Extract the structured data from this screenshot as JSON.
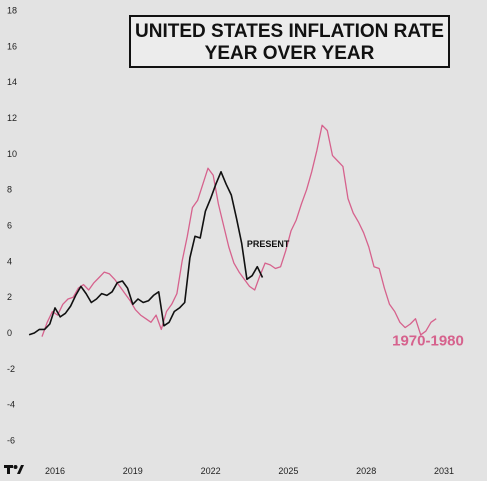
{
  "title": {
    "line1": "UNITED STATES INFLATION RATE",
    "line2": "YEAR OVER YEAR"
  },
  "logo": "TV",
  "chart_data": {
    "type": "line",
    "title": "UNITED STATES INFLATION RATE YEAR OVER YEAR",
    "xlabel": "",
    "ylabel": "",
    "xlim": [
      2014.8,
      2031.2
    ],
    "ylim": [
      -7,
      18
    ],
    "x_ticks": [
      2016,
      2019,
      2022,
      2025,
      2028,
      2031
    ],
    "y_ticks": [
      -6,
      -4,
      -2,
      0,
      2,
      4,
      6,
      8,
      10,
      12,
      14,
      16,
      18
    ],
    "grid": false,
    "legend": "none",
    "annotations": [
      {
        "text": "PRESENT",
        "x": 2023.4,
        "y": 4.8
      },
      {
        "text": "1970-1980",
        "x": 2029.0,
        "y": -0.7
      }
    ],
    "series": [
      {
        "color": "#d6628d",
        "x": [
          2015.5,
          2015.7,
          2015.9,
          2016.1,
          2016.3,
          2016.5,
          2016.7,
          2016.9,
          2017.1,
          2017.3,
          2017.5,
          2017.7,
          2017.9,
          2018.1,
          2018.3,
          2018.5,
          2018.7,
          2018.9,
          2019.1,
          2019.3,
          2019.5,
          2019.7,
          2019.9,
          2020.1,
          2020.3,
          2020.5,
          2020.7,
          2020.9,
          2021.1,
          2021.3,
          2021.5,
          2021.7,
          2021.9,
          2022.1,
          2022.3,
          2022.5,
          2022.7,
          2022.9,
          2023.1,
          2023.3,
          2023.5,
          2023.7,
          2023.9,
          2024.1,
          2024.3,
          2024.5,
          2024.7,
          2024.9,
          2025.1,
          2025.3,
          2025.5,
          2025.7,
          2025.9,
          2026.1,
          2026.3,
          2026.5,
          2026.7,
          2026.9,
          2027.1,
          2027.3,
          2027.5,
          2027.7,
          2027.9,
          2028.1,
          2028.3,
          2028.5,
          2028.7,
          2028.9,
          2029.1,
          2029.3,
          2029.5,
          2029.7,
          2029.9,
          2030.1,
          2030.3,
          2030.5,
          2030.7
        ],
        "values": [
          -0.2,
          0.6,
          1.2,
          1.0,
          1.6,
          1.9,
          2.0,
          2.5,
          2.7,
          2.4,
          2.8,
          3.1,
          3.4,
          3.3,
          3.0,
          2.6,
          2.2,
          1.8,
          1.3,
          1.0,
          0.8,
          0.6,
          1.0,
          0.2,
          1.2,
          1.6,
          2.2,
          4.0,
          5.4,
          7.0,
          7.4,
          8.3,
          9.2,
          8.8,
          7.2,
          6.0,
          4.8,
          3.9,
          3.4,
          3.0,
          2.6,
          2.4,
          3.2,
          3.9,
          3.8,
          3.6,
          3.7,
          4.6,
          5.7,
          6.3,
          7.2,
          8.0,
          9.0,
          10.2,
          11.6,
          11.3,
          9.9,
          9.6,
          9.3,
          7.5,
          6.7,
          6.2,
          5.6,
          4.8,
          3.7,
          3.6,
          2.5,
          1.6,
          1.2,
          0.6,
          0.3,
          0.5,
          0.8,
          -0.1,
          0.1,
          0.6,
          0.8
        ]
      },
      {
        "color": "#111111",
        "x": [
          2015.0,
          2015.2,
          2015.4,
          2015.6,
          2015.8,
          2016.0,
          2016.2,
          2016.4,
          2016.6,
          2016.8,
          2017.0,
          2017.2,
          2017.4,
          2017.6,
          2017.8,
          2018.0,
          2018.2,
          2018.4,
          2018.6,
          2018.8,
          2019.0,
          2019.2,
          2019.4,
          2019.6,
          2019.8,
          2020.0,
          2020.2,
          2020.4,
          2020.6,
          2020.8,
          2021.0,
          2021.2,
          2021.4,
          2021.6,
          2021.8,
          2022.0,
          2022.2,
          2022.4,
          2022.6,
          2022.8,
          2023.0,
          2023.2,
          2023.4,
          2023.6,
          2023.8,
          2024.0
        ],
        "values": [
          -0.1,
          0.0,
          0.2,
          0.2,
          0.5,
          1.4,
          0.9,
          1.1,
          1.5,
          2.1,
          2.6,
          2.2,
          1.7,
          1.9,
          2.2,
          2.1,
          2.3,
          2.8,
          2.9,
          2.5,
          1.6,
          1.9,
          1.7,
          1.8,
          2.1,
          2.3,
          0.4,
          0.6,
          1.2,
          1.4,
          1.7,
          4.2,
          5.4,
          5.3,
          6.8,
          7.5,
          8.3,
          9.0,
          8.3,
          7.7,
          6.4,
          5.0,
          3.0,
          3.2,
          3.7,
          3.1
        ]
      }
    ]
  }
}
